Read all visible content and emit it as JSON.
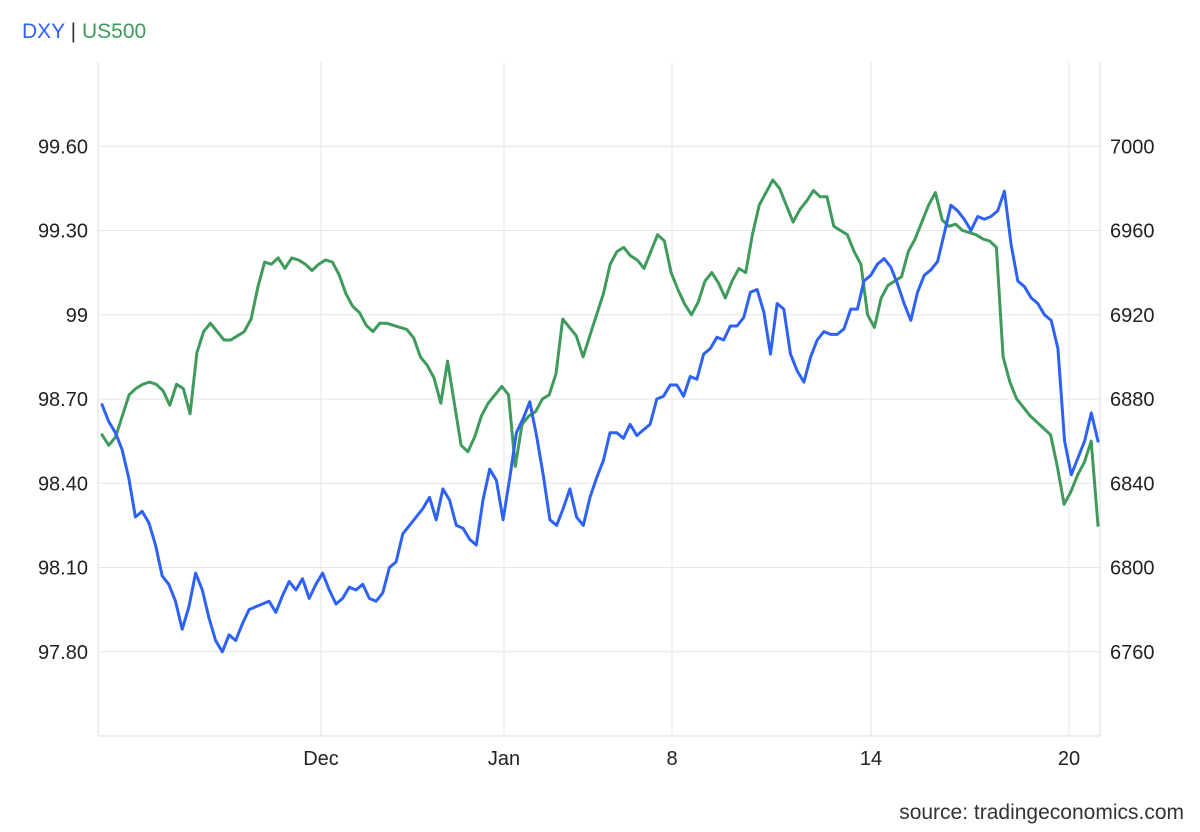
{
  "legend": {
    "series1": "DXY",
    "separator": "|",
    "series2": "US500"
  },
  "source": "source: tradingeconomics.com",
  "colors": {
    "dxy": "#2e62f5",
    "us500": "#3f9a5c",
    "grid": "#e6e6e6",
    "axis": "#dddddd"
  },
  "chart_data": {
    "type": "line",
    "grid": true,
    "legend_position": "top-left",
    "x_axis": {
      "ticks": [
        "Dec",
        "Jan",
        "8",
        "14",
        "20"
      ]
    },
    "y_left": {
      "series": "DXY",
      "ticks": [
        "99.60",
        "99.30",
        "99",
        "98.70",
        "98.40",
        "98.10",
        "97.80"
      ],
      "tick_values": [
        99.6,
        99.3,
        99.0,
        98.7,
        98.4,
        98.1,
        97.8
      ],
      "range": [
        97.5,
        99.9
      ]
    },
    "y_right": {
      "series": "US500",
      "ticks": [
        "7000",
        "6960",
        "6920",
        "6880",
        "6840",
        "6800",
        "6760"
      ],
      "tick_values": [
        7000,
        6960,
        6920,
        6880,
        6840,
        6800,
        6760
      ],
      "range": [
        6720,
        7040
      ]
    },
    "series": [
      {
        "name": "DXY",
        "axis": "left",
        "values": [
          98.68,
          98.62,
          98.58,
          98.52,
          98.42,
          98.28,
          98.3,
          98.26,
          98.18,
          98.07,
          98.04,
          97.98,
          97.88,
          97.96,
          98.08,
          98.02,
          97.92,
          97.84,
          97.8,
          97.86,
          97.84,
          97.9,
          97.95,
          97.96,
          97.97,
          97.98,
          97.94,
          98.0,
          98.05,
          98.02,
          98.06,
          97.99,
          98.04,
          98.08,
          98.02,
          97.97,
          97.99,
          98.03,
          98.02,
          98.04,
          97.99,
          97.98,
          98.01,
          98.1,
          98.12,
          98.22,
          98.25,
          98.28,
          98.31,
          98.35,
          98.27,
          98.38,
          98.34,
          98.25,
          98.24,
          98.2,
          98.18,
          98.34,
          98.45,
          98.41,
          98.27,
          98.42,
          98.58,
          98.63,
          98.69,
          98.57,
          98.43,
          98.27,
          98.25,
          98.31,
          98.38,
          98.28,
          98.25,
          98.35,
          98.42,
          98.48,
          98.58,
          98.58,
          98.56,
          98.61,
          98.57,
          98.59,
          98.61,
          98.7,
          98.71,
          98.75,
          98.75,
          98.71,
          98.78,
          98.77,
          98.86,
          98.88,
          98.92,
          98.91,
          98.96,
          98.96,
          98.99,
          99.08,
          99.09,
          99.01,
          98.86,
          99.04,
          99.02,
          98.86,
          98.8,
          98.76,
          98.85,
          98.91,
          98.94,
          98.93,
          98.93,
          98.95,
          99.02,
          99.02,
          99.12,
          99.14,
          99.18,
          99.2,
          99.17,
          99.11,
          99.04,
          98.98,
          99.08,
          99.14,
          99.16,
          99.19,
          99.29,
          99.39,
          99.37,
          99.34,
          99.3,
          99.35,
          99.34,
          99.35,
          99.37,
          99.44,
          99.25,
          99.12,
          99.1,
          99.06,
          99.04,
          99.0,
          98.98,
          98.88,
          98.55,
          98.43,
          98.49,
          98.55,
          98.65,
          98.55
        ]
      },
      {
        "name": "US500",
        "axis": "right",
        "values": [
          6863,
          6858,
          6862,
          6872,
          6882,
          6885,
          6887,
          6888,
          6887,
          6884,
          6877,
          6887,
          6885,
          6873,
          6902,
          6912,
          6916,
          6912,
          6908,
          6908,
          6910,
          6912,
          6918,
          6933,
          6945,
          6944,
          6947,
          6942,
          6947,
          6946,
          6944,
          6941,
          6944,
          6946,
          6945,
          6939,
          6930,
          6924,
          6921,
          6915,
          6912,
          6916,
          6916,
          6915,
          6914,
          6913,
          6909,
          6900,
          6896,
          6890,
          6878,
          6898,
          6878,
          6858,
          6855,
          6862,
          6872,
          6878,
          6882,
          6886,
          6882,
          6848,
          6868,
          6872,
          6874,
          6880,
          6882,
          6892,
          6918,
          6914,
          6910,
          6900,
          6910,
          6920,
          6930,
          6944,
          6950,
          6952,
          6948,
          6946,
          6942,
          6950,
          6958,
          6955,
          6940,
          6932,
          6925,
          6920,
          6926,
          6936,
          6940,
          6935,
          6928,
          6936,
          6942,
          6940,
          6958,
          6972,
          6978,
          6984,
          6980,
          6972,
          6964,
          6970,
          6974,
          6979,
          6976,
          6976,
          6962,
          6960,
          6958,
          6950,
          6944,
          6920,
          6914,
          6928,
          6934,
          6936,
          6938,
          6950,
          6956,
          6964,
          6972,
          6978,
          6965,
          6962,
          6963,
          6960,
          6959,
          6958,
          6956,
          6955,
          6952,
          6900,
          6888,
          6880,
          6876,
          6872,
          6869,
          6866,
          6863,
          6848,
          6830,
          6836,
          6844,
          6850,
          6860,
          6820
        ]
      }
    ]
  }
}
